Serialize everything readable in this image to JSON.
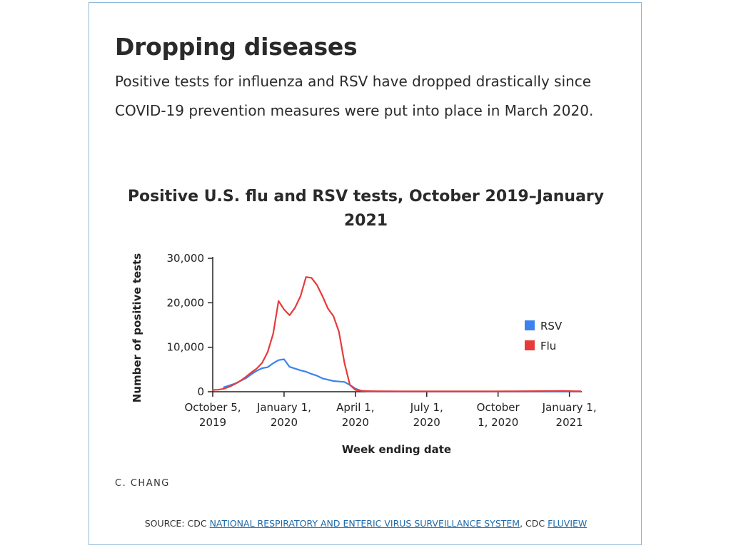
{
  "header": {
    "title": "Dropping diseases",
    "description": "Positive tests for influenza and RSV have dropped drastically since COVID-19 prevention measures were put into place in March 2020."
  },
  "credit": "C. CHANG",
  "source": {
    "prefix": "SOURCE: CDC ",
    "link1": "NATIONAL RESPIRATORY AND ENTERIC VIRUS SURVEILLANCE SYSTEM",
    "middle": ", CDC ",
    "link2": "FLUVIEW"
  },
  "colors": {
    "rsv": "#3b82f0",
    "flu": "#e83a3a",
    "axis": "#222222",
    "border": "#8fb8d8"
  },
  "chart_data": {
    "type": "line",
    "title": "Positive U.S. flu and RSV tests, October 2019–January 2021",
    "xlabel": "Week ending date",
    "ylabel": "Number of positive tests",
    "ylim": [
      0,
      30000
    ],
    "yticks": [
      0,
      10000,
      20000,
      30000
    ],
    "ytick_labels": [
      "0",
      "10,000",
      "20,000",
      "30,000"
    ],
    "xticks": [
      {
        "week": 0,
        "line1": "October 5,",
        "line2": "2019"
      },
      {
        "week": 13,
        "line1": "January 1,",
        "line2": "2020"
      },
      {
        "week": 26,
        "line1": "April 1,",
        "line2": "2020"
      },
      {
        "week": 39,
        "line1": "July 1,",
        "line2": "2020"
      },
      {
        "week": 52,
        "line1": "October",
        "line2": "1, 2020"
      },
      {
        "week": 65,
        "line1": "January 1,",
        "line2": "2021"
      }
    ],
    "xlim": [
      0,
      67
    ],
    "legend": "right",
    "series": [
      {
        "name": "RSV",
        "color": "#3b82f0",
        "x": [
          2,
          3,
          4,
          5,
          6,
          7,
          8,
          9,
          10,
          11,
          12,
          13,
          14,
          15,
          16,
          17,
          18,
          19,
          20,
          21,
          22,
          23,
          24,
          25,
          26,
          27,
          28,
          30,
          35,
          40,
          45,
          50,
          55,
          60,
          65,
          67
        ],
        "values": [
          1000,
          1400,
          1800,
          2400,
          3000,
          3900,
          4700,
          5300,
          5500,
          6400,
          7100,
          7300,
          5600,
          5200,
          4800,
          4500,
          4000,
          3600,
          3000,
          2700,
          2400,
          2300,
          2200,
          1500,
          700,
          250,
          120,
          80,
          60,
          60,
          60,
          60,
          60,
          60,
          80,
          80
        ]
      },
      {
        "name": "Flu",
        "color": "#e83a3a",
        "x": [
          0,
          1,
          2,
          3,
          4,
          5,
          6,
          7,
          8,
          9,
          10,
          11,
          12,
          13,
          14,
          15,
          16,
          17,
          18,
          19,
          20,
          21,
          22,
          23,
          24,
          25,
          26,
          27,
          28,
          30,
          35,
          40,
          45,
          50,
          55,
          60,
          64,
          66,
          67
        ],
        "values": [
          400,
          450,
          650,
          1100,
          1700,
          2400,
          3300,
          4300,
          5200,
          6500,
          8900,
          13000,
          20400,
          18500,
          17200,
          18900,
          21500,
          25800,
          25600,
          24000,
          21500,
          18700,
          17000,
          13500,
          6500,
          1500,
          400,
          200,
          150,
          100,
          80,
          80,
          80,
          80,
          100,
          150,
          200,
          100,
          100
        ]
      }
    ]
  }
}
